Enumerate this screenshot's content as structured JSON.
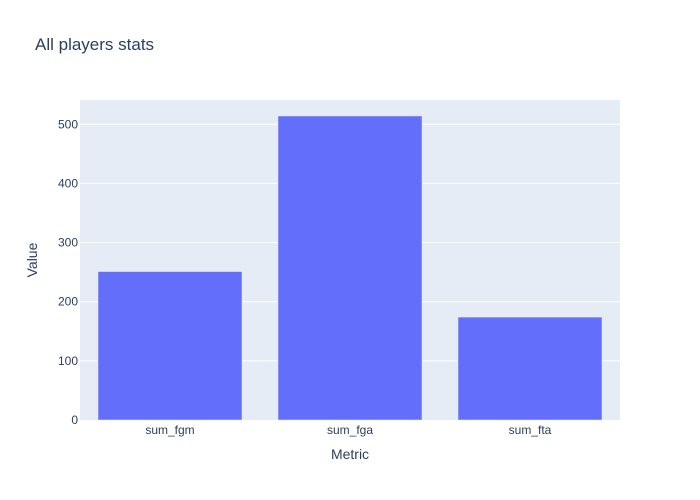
{
  "chart_data": {
    "type": "bar",
    "title": "All players stats",
    "xlabel": "Metric",
    "ylabel": "Value",
    "categories": [
      "sum_fgm",
      "sum_fga",
      "sum_fta"
    ],
    "values": [
      251,
      514,
      174
    ],
    "ylim": [
      0,
      541
    ],
    "yticks": [
      0,
      100,
      200,
      300,
      400,
      500
    ],
    "grid": true,
    "colors": {
      "bar": "#636efa",
      "plot_background": "#e5ecf6",
      "gridline": "#ffffff",
      "text": "#2a3f5f"
    }
  }
}
